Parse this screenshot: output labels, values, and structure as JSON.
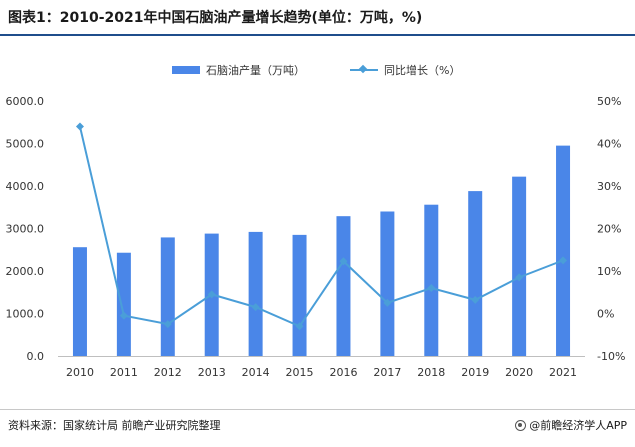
{
  "header": {
    "title": "图表1：2010-2021年中国石脑油产量增长趋势(单位：万吨，%)"
  },
  "footer": {
    "source": "资料来源：国家统计局 前瞻产业研究院整理",
    "brand": "@前瞻经济学人APP"
  },
  "colors": {
    "bar": "#4a86e8",
    "line": "#4a9ed8",
    "title_rule": "#1f4e8c"
  },
  "chart_data": {
    "type": "bar",
    "categories": [
      "2010",
      "2011",
      "2012",
      "2013",
      "2014",
      "2015",
      "2016",
      "2017",
      "2018",
      "2019",
      "2020",
      "2021"
    ],
    "series": [
      {
        "name": "石脑油产量（万吨）",
        "type": "bar",
        "axis": "left",
        "values": [
          2560,
          2430,
          2790,
          2880,
          2920,
          2850,
          3290,
          3400,
          3560,
          3880,
          4220,
          4950
        ]
      },
      {
        "name": "同比增长（%）",
        "type": "line",
        "axis": "right",
        "values": [
          44.0,
          -0.5,
          -2.5,
          4.5,
          1.5,
          -3.0,
          12.3,
          2.5,
          6.0,
          3.2,
          8.5,
          12.5
        ]
      }
    ],
    "left_axis": {
      "min": 0,
      "max": 6000,
      "ticks": [
        "0.0",
        "1000.0",
        "2000.0",
        "3000.0",
        "4000.0",
        "5000.0",
        "6000.0"
      ]
    },
    "right_axis": {
      "min": -10,
      "max": 50,
      "ticks": [
        "-10%",
        "0%",
        "10%",
        "20%",
        "30%",
        "40%",
        "50%"
      ]
    },
    "legend_position": "top-center",
    "grid": false
  }
}
